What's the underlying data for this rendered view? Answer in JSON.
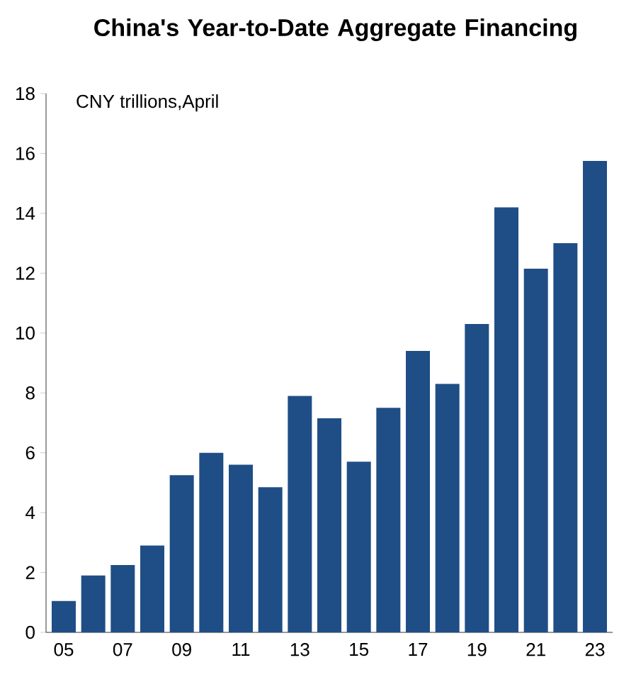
{
  "chart_data": {
    "type": "bar",
    "title": "China's Year-to-Date Aggregate Financing",
    "subtitle": "CNY trillions,April",
    "categories": [
      "05",
      null,
      "07",
      null,
      "09",
      null,
      "11",
      null,
      "13",
      null,
      "15",
      null,
      "17",
      null,
      "19",
      null,
      "21",
      null,
      "23"
    ],
    "values": [
      1.05,
      1.9,
      2.25,
      2.9,
      5.25,
      6.0,
      5.6,
      4.85,
      7.9,
      7.15,
      5.7,
      7.5,
      9.4,
      8.3,
      10.3,
      14.2,
      12.15,
      13.0,
      15.75
    ],
    "color": "#1f4e86",
    "ylim": [
      0,
      18
    ],
    "yticks": [
      0,
      2,
      4,
      6,
      8,
      10,
      12,
      14,
      16,
      18
    ],
    "grid": false
  }
}
